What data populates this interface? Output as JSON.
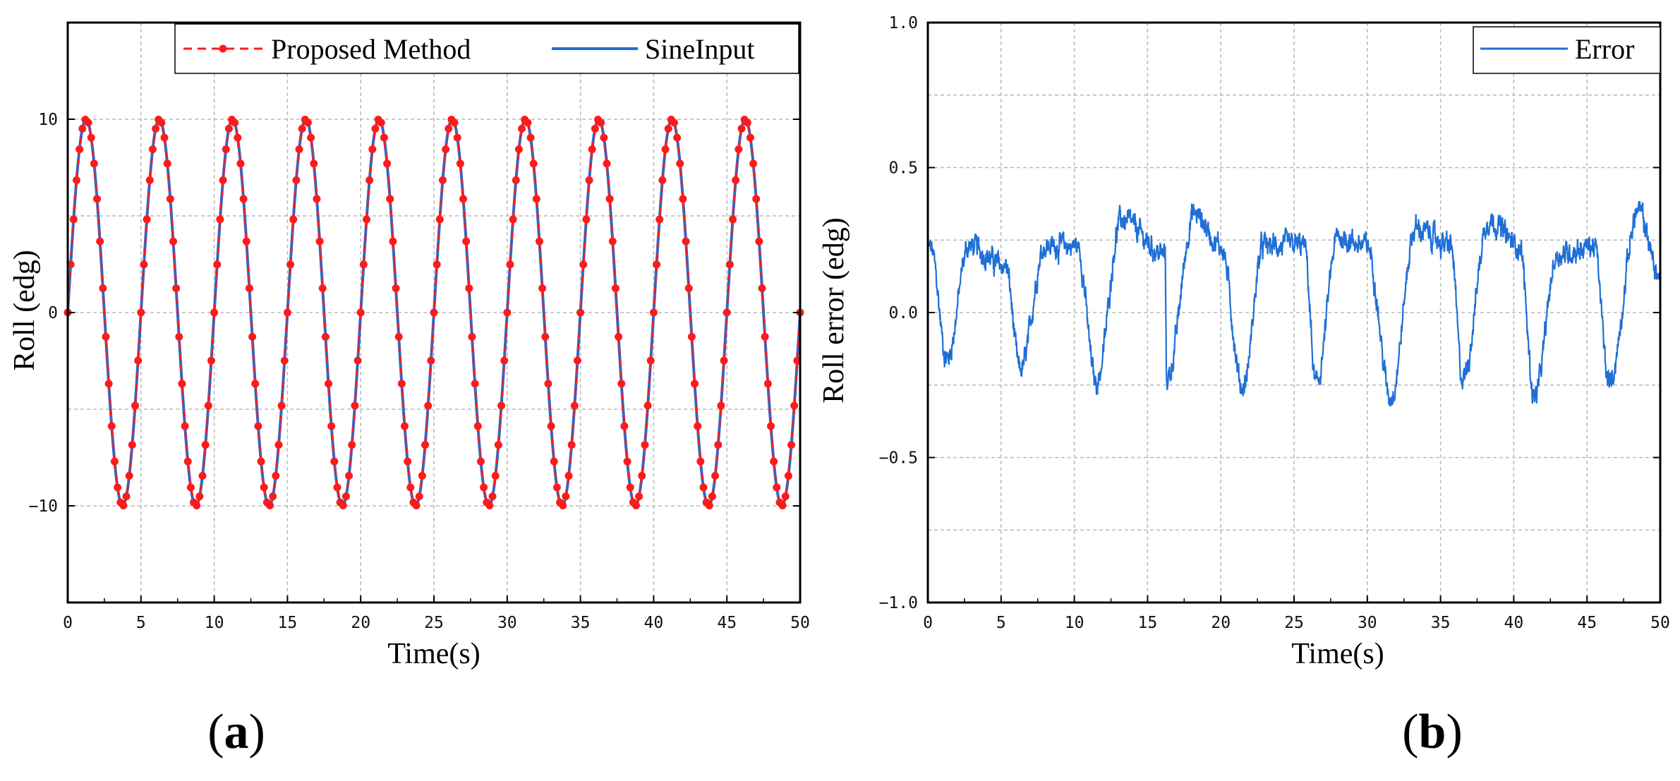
{
  "colors": {
    "proposed": "#ff1a1a",
    "sine": "#1f6fd6",
    "error": "#1f6fd6",
    "grid": "#b8b8b8",
    "axis": "#000000"
  },
  "chart_data": [
    {
      "id": "a",
      "type": "line",
      "panel_label": "a",
      "xlabel": "Time(s)",
      "ylabel": "Roll (edg)",
      "xlim": [
        0,
        50
      ],
      "ylim": [
        -15,
        15
      ],
      "x_ticks": [
        0,
        5,
        10,
        15,
        20,
        25,
        30,
        35,
        40,
        45,
        50
      ],
      "x_tick_labels": [
        "0",
        "5",
        "10",
        "15",
        "20",
        "25",
        "30",
        "35",
        "40",
        "45",
        "50"
      ],
      "y_ticks": [
        -10,
        0,
        10
      ],
      "y_tick_labels": [
        "−10",
        "0",
        "10"
      ],
      "y_grid": [
        -10,
        -5,
        0,
        5,
        10
      ],
      "grid": true,
      "legend_position": "top-right",
      "series": [
        {
          "name": "Proposed Method",
          "style": "dashed-with-dots",
          "function": "sine",
          "amplitude": 10,
          "period": 5,
          "phase_offset": 0.0,
          "sample_step": 0.2,
          "x_range": [
            0,
            50
          ]
        },
        {
          "name": "SineInput",
          "style": "solid",
          "function": "sine",
          "amplitude": 10,
          "period": 5,
          "phase_offset": 0.0,
          "x_range": [
            0,
            50
          ]
        }
      ]
    },
    {
      "id": "b",
      "type": "line",
      "panel_label": "b",
      "xlabel": "Time(s)",
      "ylabel": "Roll error (edg)",
      "xlim": [
        0,
        50
      ],
      "ylim": [
        -1.0,
        1.0
      ],
      "x_ticks": [
        0,
        5,
        10,
        15,
        20,
        25,
        30,
        35,
        40,
        45,
        50
      ],
      "x_tick_labels": [
        "0",
        "5",
        "10",
        "15",
        "20",
        "25",
        "30",
        "35",
        "40",
        "45",
        "50"
      ],
      "y_ticks": [
        -1.0,
        -0.5,
        0.0,
        0.5,
        1.0
      ],
      "y_tick_labels": [
        "−1.0",
        "−0.5",
        "0.0",
        "0.5",
        "1.0"
      ],
      "y_grid": [
        -1.0,
        -0.75,
        -0.5,
        -0.25,
        0.0,
        0.25,
        0.5,
        0.75,
        1.0
      ],
      "grid": true,
      "legend_position": "top-right",
      "series": [
        {
          "name": "Error",
          "style": "solid",
          "x_range": [
            0,
            50
          ],
          "approx_shape": "periodic, period 5 s, mean ~0.02, range about -0.28 to 0.35, with high-frequency noise",
          "approx_peaks": [
            [
              0.2,
              0.22
            ],
            [
              2.8,
              0.23
            ],
            [
              5.3,
              0.16
            ],
            [
              8.0,
              0.23
            ],
            [
              10.2,
              0.23
            ],
            [
              13.2,
              0.32
            ],
            [
              16.2,
              0.2
            ],
            [
              18.2,
              0.34
            ],
            [
              20.0,
              0.23
            ],
            [
              22.9,
              0.23
            ],
            [
              25.7,
              0.23
            ],
            [
              28.0,
              0.26
            ],
            [
              30.0,
              0.23
            ],
            [
              33.3,
              0.29
            ],
            [
              35.7,
              0.23
            ],
            [
              38.3,
              0.32
            ],
            [
              40.4,
              0.23
            ],
            [
              43.0,
              0.2
            ],
            [
              45.5,
              0.23
            ],
            [
              48.5,
              0.35
            ],
            [
              50.0,
              0.12
            ]
          ],
          "approx_troughs": [
            [
              1.3,
              -0.16
            ],
            [
              6.3,
              -0.2
            ],
            [
              11.5,
              -0.24
            ],
            [
              16.3,
              -0.23
            ],
            [
              21.5,
              -0.26
            ],
            [
              26.5,
              -0.25
            ],
            [
              31.6,
              -0.29
            ],
            [
              36.5,
              -0.23
            ],
            [
              41.4,
              -0.29
            ],
            [
              46.5,
              -0.24
            ]
          ]
        }
      ]
    }
  ]
}
